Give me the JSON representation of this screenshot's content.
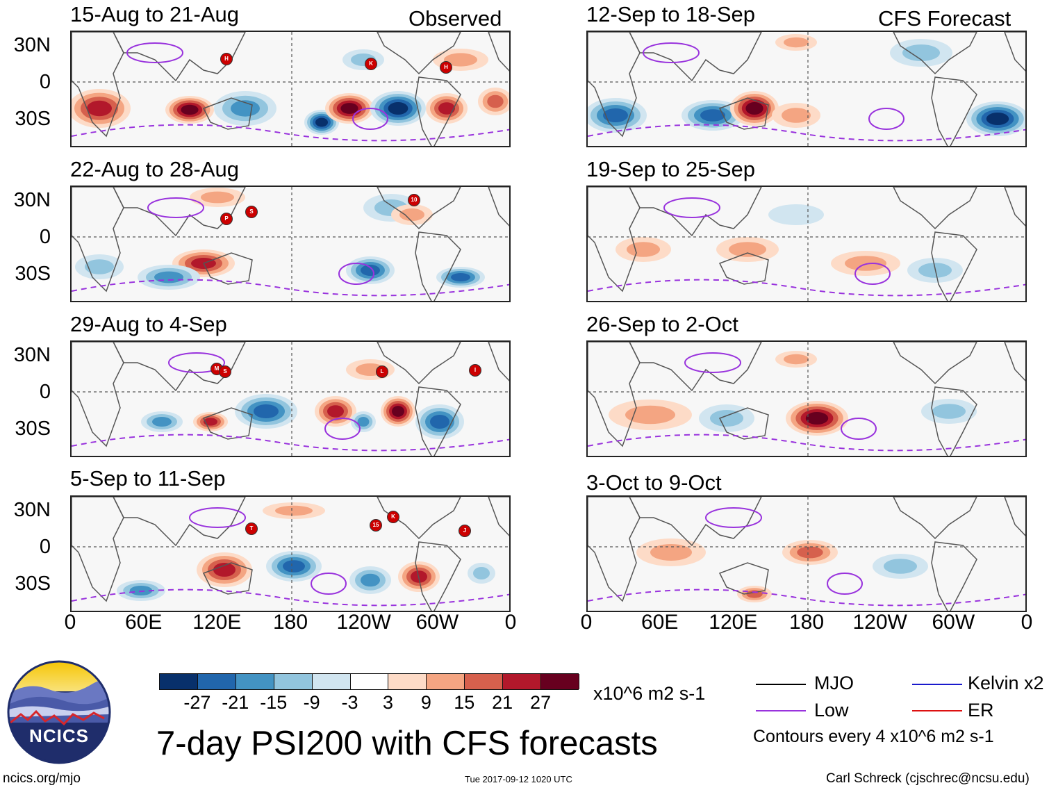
{
  "columns": {
    "left_label": "Observed",
    "right_label": "CFS Forecast"
  },
  "panels_left": [
    {
      "title": "15-Aug to 21-Aug"
    },
    {
      "title": "22-Aug to 28-Aug"
    },
    {
      "title": "29-Aug to 4-Sep"
    },
    {
      "title": "5-Sep to 11-Sep"
    }
  ],
  "panels_right": [
    {
      "title": "12-Sep to 18-Sep"
    },
    {
      "title": "19-Sep to 25-Sep"
    },
    {
      "title": "26-Sep to 2-Oct"
    },
    {
      "title": "3-Oct to 9-Oct"
    }
  ],
  "lat_labels": [
    "30N",
    "0",
    "30S"
  ],
  "lon_labels": [
    "0",
    "60E",
    "120E",
    "180",
    "120W",
    "60W",
    "0"
  ],
  "storms": [
    {
      "panel": 0,
      "marks": [
        "H",
        "K",
        "H"
      ]
    },
    {
      "panel": 1,
      "marks": [
        "P",
        "S",
        "10"
      ]
    },
    {
      "panel": 2,
      "marks": [
        "M",
        "S",
        "L",
        "I"
      ]
    },
    {
      "panel": 3,
      "marks": [
        "T",
        "15",
        "K",
        "J"
      ]
    }
  ],
  "colorbar": {
    "colors": [
      "#08306b",
      "#2166ac",
      "#4393c3",
      "#92c5de",
      "#d1e5f0",
      "#ffffff",
      "#fddbc7",
      "#f4a582",
      "#d6604d",
      "#b2182b",
      "#67001f"
    ],
    "ticks": [
      "-27",
      "-21",
      "-15",
      "-9",
      "-3",
      "3",
      "9",
      "15",
      "21",
      "27"
    ],
    "units": "x10^6 m2 s-1"
  },
  "legend": {
    "mjo": "MJO",
    "low": "Low",
    "kelvin": "Kelvin x2",
    "er": "ER",
    "mjo_color": "#000000",
    "low_color": "#9933dd",
    "kelvin_color": "#1a1acc",
    "er_color": "#dd1111",
    "contours_note": "Contours every 4 x10^6 m2 s-1"
  },
  "main_title": "7-day PSI200 with CFS forecasts",
  "logo_text": "NCICS",
  "footer": {
    "url": "ncics.org/mjo",
    "timestamp": "Tue 2017-09-12 1020 UTC",
    "author": "Carl Schreck (cjschrec@ncsu.edu)"
  }
}
